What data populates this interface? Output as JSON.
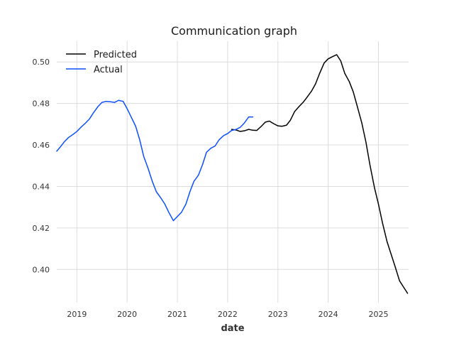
{
  "chart_data": {
    "type": "line",
    "title": "Communication graph",
    "xlabel": "date",
    "ylabel": "",
    "xlim": [
      2018.6,
      2025.6
    ],
    "ylim": [
      0.384,
      0.51
    ],
    "x_ticks": [
      2019,
      2020,
      2021,
      2022,
      2023,
      2024,
      2025
    ],
    "x_tick_labels": [
      "2019",
      "2020",
      "2021",
      "2022",
      "2023",
      "2024",
      "2025"
    ],
    "y_ticks": [
      0.4,
      0.42,
      0.44,
      0.46,
      0.48,
      0.5
    ],
    "y_tick_labels": [
      "0.40",
      "0.42",
      "0.44",
      "0.46",
      "0.48",
      "0.50"
    ],
    "grid": true,
    "legend_position": "top-left",
    "series": [
      {
        "name": "Predicted",
        "color": "#000000",
        "x": [
          2022.08,
          2022.17,
          2022.25,
          2022.33,
          2022.42,
          2022.5,
          2022.58,
          2022.67,
          2022.75,
          2022.83,
          2022.92,
          2023.0,
          2023.08,
          2023.17,
          2023.25,
          2023.33,
          2023.42,
          2023.5,
          2023.58,
          2023.67,
          2023.75,
          2023.83,
          2023.92,
          2024.0,
          2024.08,
          2024.17,
          2024.25,
          2024.33,
          2024.42,
          2024.5,
          2024.58,
          2024.67,
          2024.75,
          2024.83,
          2024.92,
          2025.0,
          2025.08,
          2025.17,
          2025.25,
          2025.33,
          2025.42,
          2025.5,
          2025.58
        ],
        "y": [
          0.4675,
          0.4672,
          0.4665,
          0.4668,
          0.4675,
          0.4671,
          0.467,
          0.469,
          0.471,
          0.4715,
          0.4702,
          0.4692,
          0.469,
          0.4695,
          0.472,
          0.476,
          0.4785,
          0.4805,
          0.483,
          0.486,
          0.4895,
          0.4945,
          0.4995,
          0.5015,
          0.5025,
          0.5035,
          0.5005,
          0.4945,
          0.4905,
          0.4855,
          0.4785,
          0.4705,
          0.4615,
          0.4505,
          0.4395,
          0.4315,
          0.4225,
          0.4135,
          0.4075,
          0.4015,
          0.3945,
          0.3915,
          0.3885
        ]
      },
      {
        "name": "Actual",
        "color": "#0b4fff",
        "x": [
          2018.6,
          2018.67,
          2018.75,
          2018.83,
          2018.92,
          2019.0,
          2019.08,
          2019.17,
          2019.25,
          2019.33,
          2019.42,
          2019.5,
          2019.58,
          2019.67,
          2019.75,
          2019.83,
          2019.92,
          2020.0,
          2020.08,
          2020.17,
          2020.25,
          2020.33,
          2020.42,
          2020.5,
          2020.58,
          2020.67,
          2020.75,
          2020.83,
          2020.92,
          2021.0,
          2021.08,
          2021.17,
          2021.25,
          2021.33,
          2021.42,
          2021.5,
          2021.58,
          2021.67,
          2021.75,
          2021.83,
          2021.92,
          2022.0,
          2022.08,
          2022.17,
          2022.25,
          2022.33,
          2022.42,
          2022.5
        ],
        "y": [
          0.457,
          0.459,
          0.4615,
          0.4635,
          0.465,
          0.4665,
          0.4685,
          0.4705,
          0.4725,
          0.4755,
          0.4785,
          0.4805,
          0.481,
          0.4808,
          0.4805,
          0.4815,
          0.481,
          0.4775,
          0.4735,
          0.469,
          0.4625,
          0.4545,
          0.4485,
          0.4425,
          0.4375,
          0.4345,
          0.4315,
          0.4275,
          0.4235,
          0.4255,
          0.4275,
          0.4315,
          0.4375,
          0.4425,
          0.4455,
          0.4505,
          0.4565,
          0.4585,
          0.4595,
          0.4625,
          0.4645,
          0.4655,
          0.467,
          0.4675,
          0.4685,
          0.4705,
          0.4735,
          0.4735
        ]
      }
    ]
  }
}
